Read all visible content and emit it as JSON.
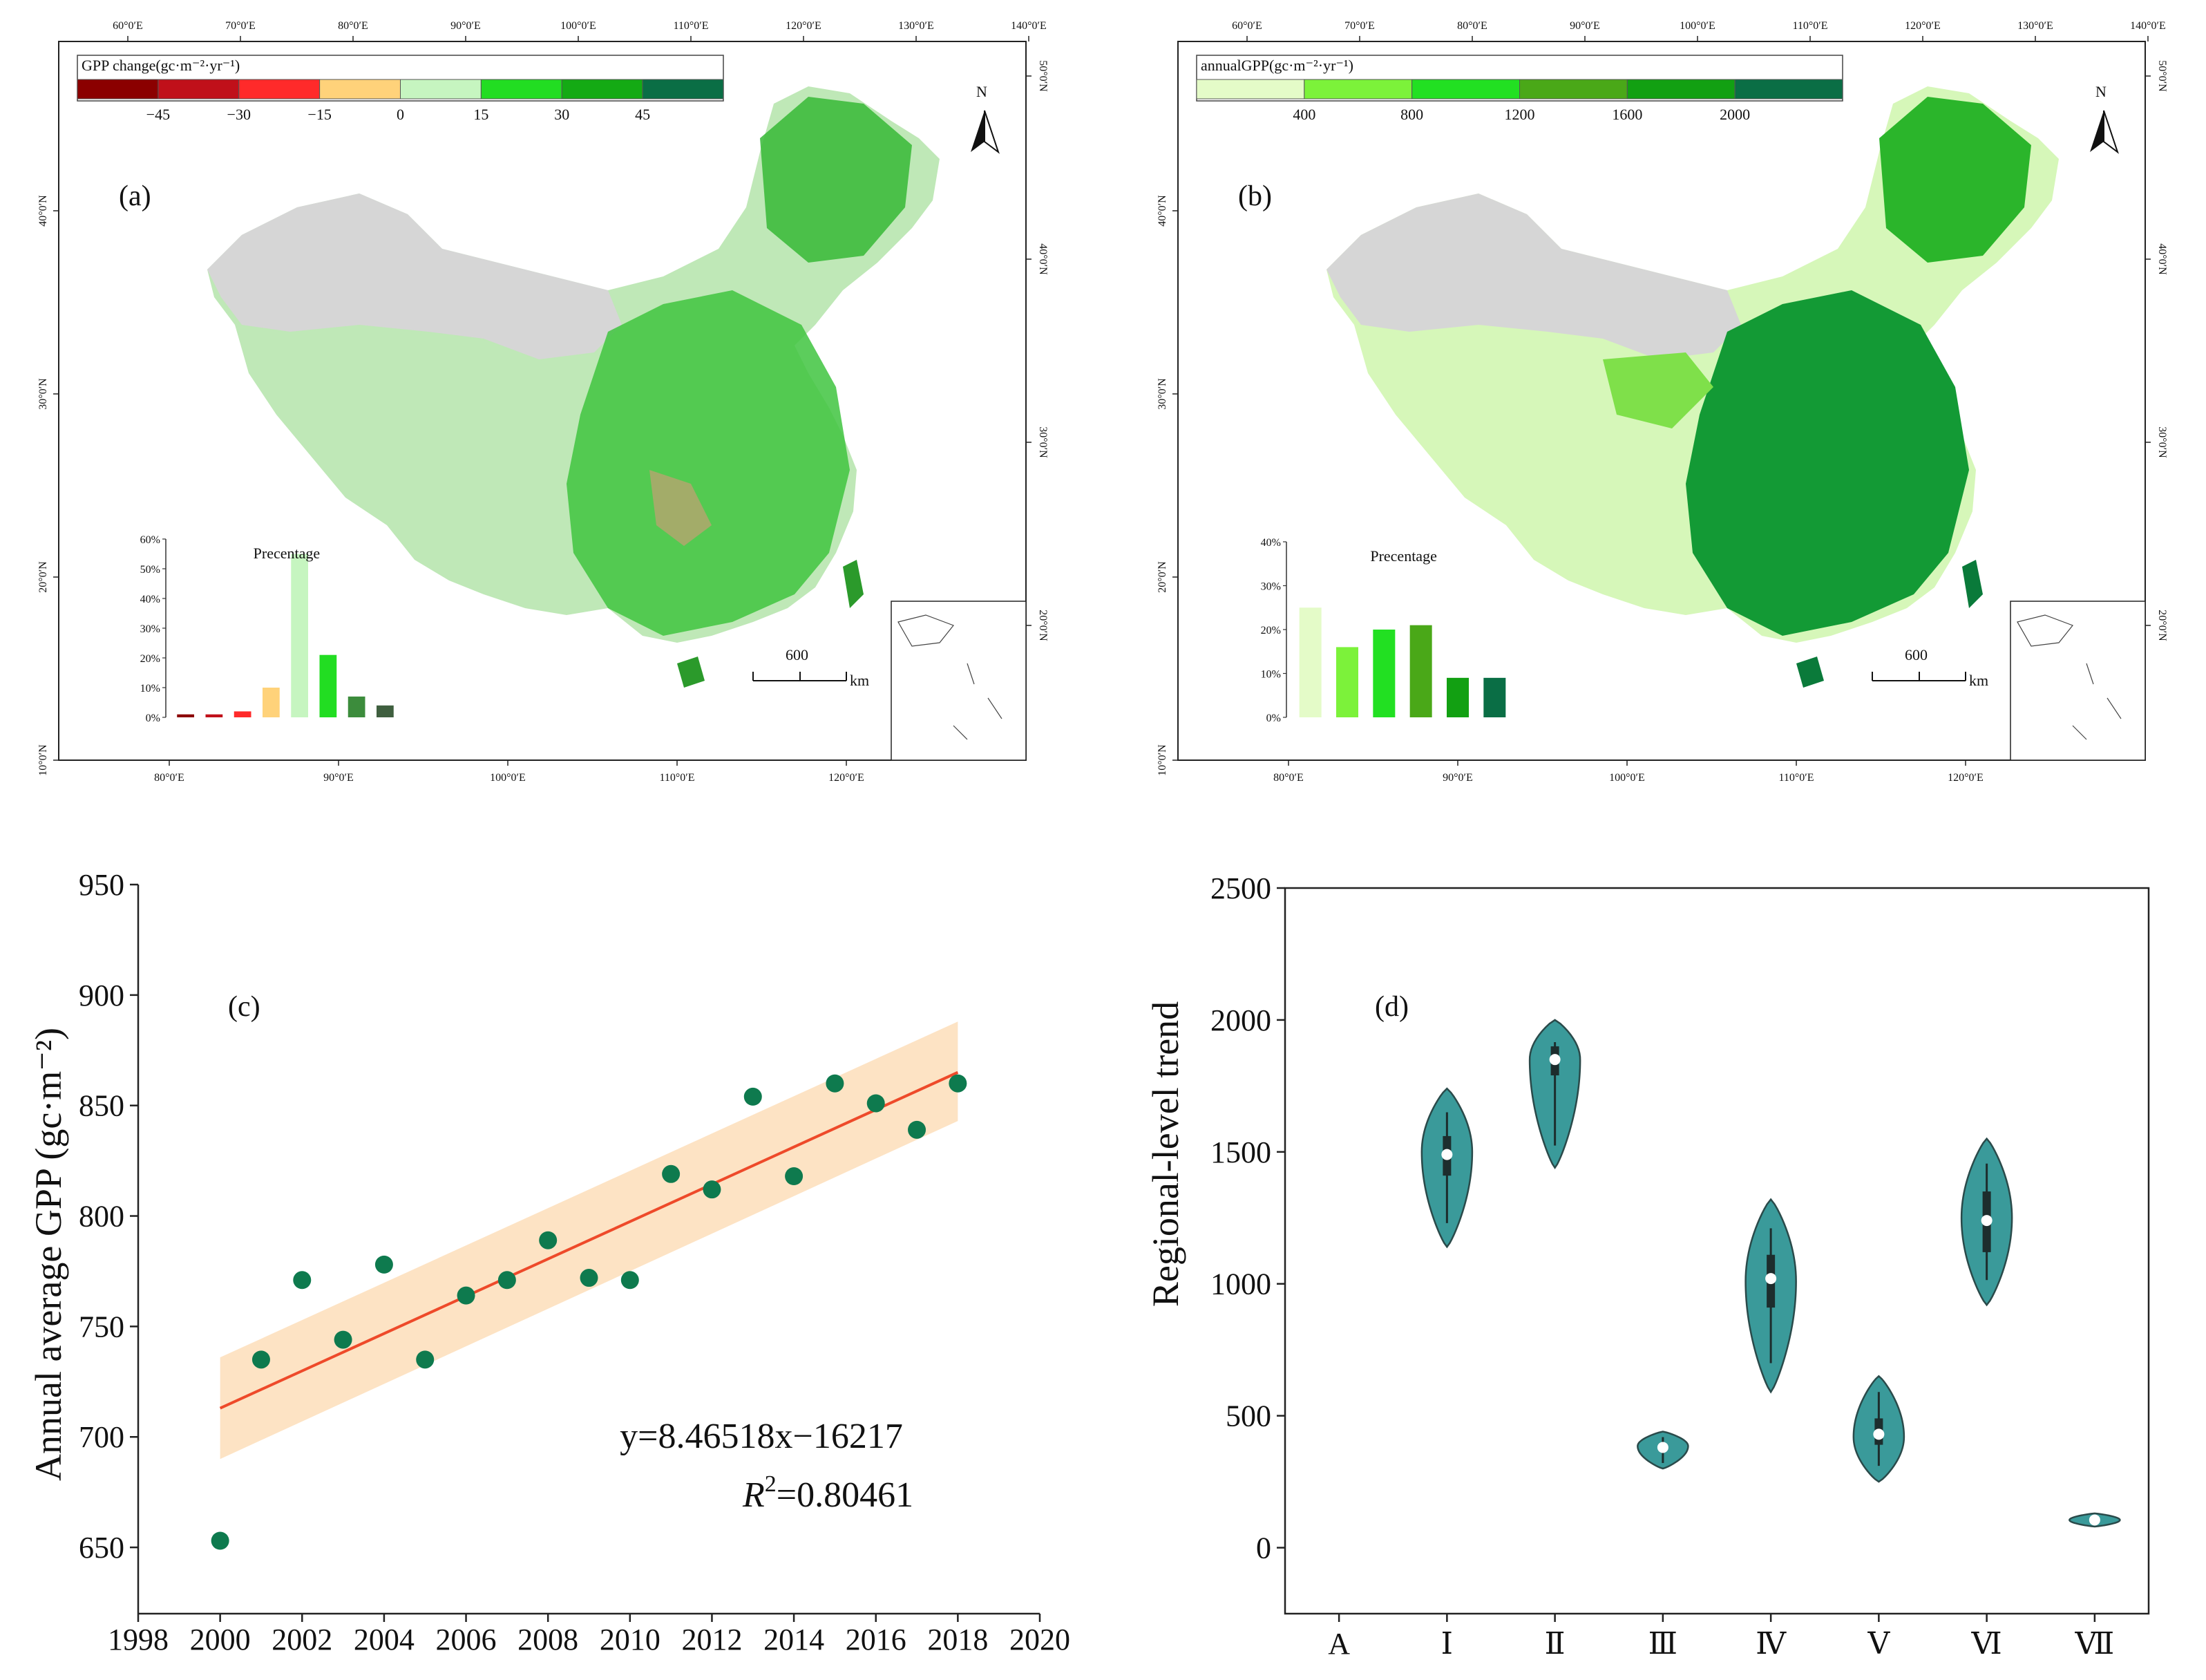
{
  "panel_a": {
    "label": "(a)",
    "legend_title": "GPP change(gc·m⁻²·yr⁻¹)",
    "legend_colors": [
      "#8b0000",
      "#c0101a",
      "#ff2a2a",
      "#ffd27a",
      "#c6f5c0",
      "#22dd22",
      "#14aa14",
      "#0a6e45"
    ],
    "legend_ticks": [
      "−45",
      "−30",
      "−15",
      "0",
      "15",
      "30",
      "45"
    ],
    "north": "N",
    "scale_value": "600",
    "scale_unit": "km",
    "top_ticks": [
      "60°0′E",
      "70°0′E",
      "80°0′E",
      "90°0′E",
      "100°0′E",
      "110°0′E",
      "120°0′E",
      "130°0′E",
      "140°0′E"
    ],
    "bottom_ticks": [
      "80°0′E",
      "90°0′E",
      "100°0′E",
      "110°0′E",
      "120°0′E"
    ],
    "left_ticks": [
      "40°0′N",
      "30°0′N",
      "20°0′N",
      "10°0′N"
    ],
    "right_ticks": [
      "50°0′N",
      "40°0′N",
      "30°0′N",
      "20°0′N"
    ]
  },
  "panel_b": {
    "label": "(b)",
    "legend_title": "annualGPP(gc·m⁻²·yr⁻¹)",
    "legend_colors": [
      "#e4fbc8",
      "#7cf23a",
      "#22e022",
      "#4aa818",
      "#12a012",
      "#0a6e45"
    ],
    "legend_ticks": [
      "400",
      "800",
      "1200",
      "1600",
      "2000"
    ],
    "north": "N",
    "scale_value": "600",
    "scale_unit": "km",
    "top_ticks": [
      "60°0′E",
      "70°0′E",
      "80°0′E",
      "90°0′E",
      "100°0′E",
      "110°0′E",
      "120°0′E",
      "130°0′E",
      "140°0′E"
    ],
    "bottom_ticks": [
      "80°0′E",
      "90°0′E",
      "100°0′E",
      "110°0′E",
      "120°0′E"
    ],
    "left_ticks": [
      "40°0′N",
      "30°0′N",
      "20°0′N",
      "10°0′N"
    ],
    "right_ticks": [
      "50°0′N",
      "40°0′N",
      "30°0′N",
      "20°0′N"
    ]
  },
  "chart_data": [
    {
      "id": "a_inset",
      "type": "bar",
      "title": "Precentage",
      "yticks": [
        "0%",
        "10%",
        "20%",
        "30%",
        "40%",
        "50%",
        "60%"
      ],
      "ylim": [
        0,
        60
      ],
      "values": [
        1,
        1,
        2,
        10,
        55,
        21,
        7,
        4
      ],
      "colors": [
        "#8b0000",
        "#c0101a",
        "#ff2a2a",
        "#ffd27a",
        "#c6f5c0",
        "#22dd22",
        "#3c8c3c",
        "#3f5f3f"
      ]
    },
    {
      "id": "b_inset",
      "type": "bar",
      "title": "Precentage",
      "yticks": [
        "0%",
        "10%",
        "20%",
        "30%",
        "40%"
      ],
      "ylim": [
        0,
        40
      ],
      "values": [
        25,
        16,
        20,
        21,
        9,
        9
      ],
      "colors": [
        "#e4fbc8",
        "#7cf23a",
        "#22e022",
        "#4aa818",
        "#12a012",
        "#0a6e45"
      ]
    },
    {
      "id": "c",
      "type": "scatter",
      "label": "(c)",
      "ylabel": "Annual average GPP (gc·m⁻²)",
      "x": [
        2000,
        2001,
        2002,
        2003,
        2004,
        2005,
        2006,
        2007,
        2008,
        2009,
        2010,
        2011,
        2012,
        2013,
        2014,
        2015,
        2016,
        2017,
        2018
      ],
      "y": [
        653,
        735,
        771,
        744,
        778,
        735,
        764,
        771,
        789,
        772,
        771,
        819,
        812,
        854,
        818,
        860,
        851,
        839,
        860
      ],
      "xlim": [
        1998,
        2020
      ],
      "ylim": [
        620,
        950
      ],
      "xticks": [
        1998,
        2000,
        2002,
        2004,
        2006,
        2008,
        2010,
        2012,
        2014,
        2016,
        2018,
        2020
      ],
      "yticks": [
        650,
        700,
        750,
        800,
        850,
        900,
        950
      ],
      "fit": {
        "x0": 2000,
        "y0": 713,
        "x1": 2018,
        "y1": 865,
        "band_lo0": 690,
        "band_hi0": 736,
        "band_lo1": 843,
        "band_hi1": 888
      },
      "equation": "y=8.46518x−16217",
      "r2_prefix": "R",
      "r2_sup": "2",
      "r2_value": "=0.80461",
      "point_color": "#0e7a4e",
      "line_color": "#ee4a2a",
      "band_color": "#fde3c4"
    },
    {
      "id": "d",
      "type": "violin",
      "label": "(d)",
      "ylabel": "Regional-level trend",
      "categories": [
        "A",
        "Ⅰ",
        "Ⅱ",
        "Ⅲ",
        "Ⅳ",
        "Ⅴ",
        "Ⅵ",
        "Ⅶ"
      ],
      "ylim": [
        -250,
        2500
      ],
      "yticks": [
        0,
        500,
        1000,
        1500,
        2000,
        2500
      ],
      "violins": [
        {
          "cat": "Ⅰ",
          "median": 1490,
          "min": 1140,
          "max": 1740,
          "q1": 1410,
          "q3": 1560,
          "peak": 1500,
          "width": 0.55
        },
        {
          "cat": "Ⅱ",
          "median": 1850,
          "min": 1440,
          "max": 2000,
          "q1": 1790,
          "q3": 1900,
          "peak": 1850,
          "width": 0.55
        },
        {
          "cat": "Ⅲ",
          "median": 380,
          "min": 300,
          "max": 440,
          "q1": 370,
          "q3": 395,
          "peak": 385,
          "width": 0.55
        },
        {
          "cat": "Ⅳ",
          "median": 1020,
          "min": 590,
          "max": 1320,
          "q1": 910,
          "q3": 1110,
          "peak": 1010,
          "width": 0.55
        },
        {
          "cat": "Ⅴ",
          "median": 430,
          "min": 250,
          "max": 650,
          "q1": 390,
          "q3": 490,
          "peak": 420,
          "width": 0.55
        },
        {
          "cat": "Ⅵ",
          "median": 1240,
          "min": 920,
          "max": 1550,
          "q1": 1120,
          "q3": 1350,
          "peak": 1250,
          "width": 0.55
        },
        {
          "cat": "Ⅶ",
          "median": 105,
          "min": 80,
          "max": 130,
          "q1": 100,
          "q3": 112,
          "peak": 105,
          "width": 0.55
        }
      ],
      "fill_color": "#3a9a9a"
    }
  ]
}
